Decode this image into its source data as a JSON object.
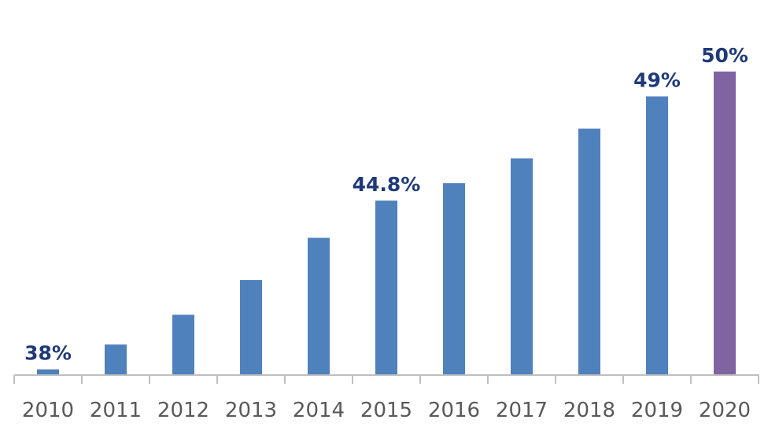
{
  "chart_data": {
    "type": "bar",
    "title": "",
    "xlabel": "",
    "ylabel": "",
    "categories": [
      "2010",
      "2011",
      "2012",
      "2013",
      "2014",
      "2015",
      "2016",
      "2017",
      "2018",
      "2019",
      "2020"
    ],
    "values": [
      38,
      39.0,
      40.2,
      41.6,
      43.3,
      44.8,
      45.5,
      46.5,
      47.7,
      49,
      50
    ],
    "data_labels": {
      "2010": "38%",
      "2015": "44.8%",
      "2019": "49%",
      "2020": "50%"
    },
    "ylim": [
      37.8,
      51
    ],
    "grid": false,
    "colors": {
      "default": "#4f81bd",
      "highlight": "#8064a2",
      "highlight_category": "2020",
      "axis": "#bfbfbf"
    }
  }
}
